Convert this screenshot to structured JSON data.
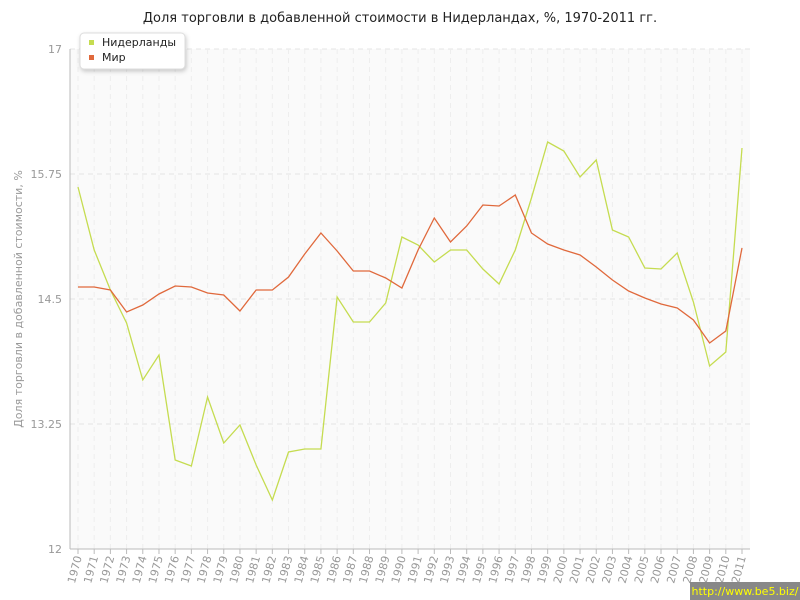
{
  "chart_data": {
    "type": "line",
    "title": "Доля торговли в добавленной стоимости в Нидерландах, %, 1970-2011 гг.",
    "y_label": "Доля торговли в добавленной стоимости, %",
    "watermark": "http://www.be5.biz/",
    "categories": [
      "1970",
      "1971",
      "1972",
      "1973",
      "1974",
      "1975",
      "1976",
      "1977",
      "1978",
      "1979",
      "1980",
      "1981",
      "1982",
      "1983",
      "1984",
      "1985",
      "1986",
      "1987",
      "1988",
      "1989",
      "1990",
      "1991",
      "1992",
      "1993",
      "1994",
      "1995",
      "1996",
      "1997",
      "1998",
      "1999",
      "2000",
      "2001",
      "2002",
      "2003",
      "2004",
      "2005",
      "2006",
      "2007",
      "2008",
      "2009",
      "2010",
      "2011"
    ],
    "series": [
      {
        "name": "Нидерланды",
        "color": "#c5dc50",
        "values": [
          15.62,
          14.99,
          14.59,
          14.26,
          13.69,
          13.94,
          12.89,
          12.83,
          13.52,
          13.06,
          13.24,
          12.84,
          12.49,
          12.97,
          13.0,
          13.0,
          14.52,
          14.27,
          14.27,
          14.46,
          15.12,
          15.04,
          14.87,
          14.99,
          14.99,
          14.8,
          14.65,
          14.99,
          15.51,
          16.07,
          15.98,
          15.72,
          15.89,
          15.19,
          15.12,
          14.81,
          14.8,
          14.96,
          14.47,
          13.83,
          13.97,
          16.01
        ]
      },
      {
        "name": "Мир",
        "color": "#e0693c",
        "values": [
          14.62,
          14.62,
          14.59,
          14.37,
          14.44,
          14.55,
          14.63,
          14.62,
          14.56,
          14.54,
          14.38,
          14.59,
          14.59,
          14.72,
          14.95,
          15.16,
          14.98,
          14.78,
          14.78,
          14.71,
          14.61,
          14.99,
          15.31,
          15.07,
          15.23,
          15.44,
          15.43,
          15.54,
          15.16,
          15.05,
          14.99,
          14.94,
          14.82,
          14.69,
          14.58,
          14.51,
          14.45,
          14.41,
          14.29,
          14.06,
          14.18,
          15.01
        ]
      }
    ],
    "ylim": [
      12,
      17
    ],
    "yticks": [
      12,
      13.25,
      14.5,
      15.75,
      17
    ],
    "grid": true,
    "legend": "top-left"
  }
}
